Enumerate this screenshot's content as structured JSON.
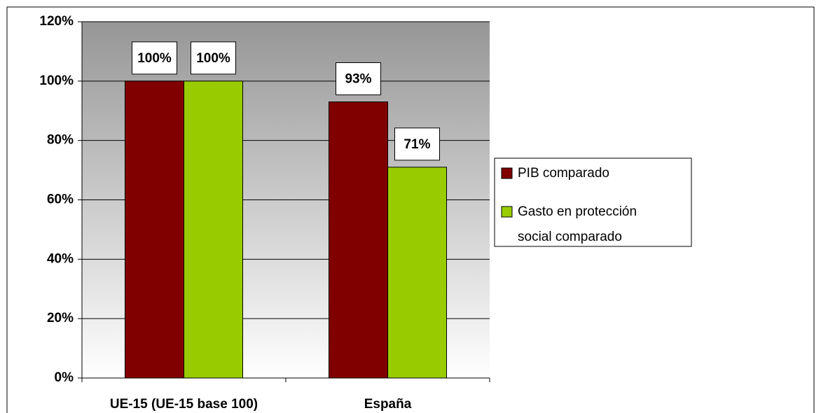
{
  "chart_data": {
    "type": "bar",
    "categories": [
      "UE-15 (UE-15 base 100)",
      "España"
    ],
    "series": [
      {
        "name": "PIB comparado",
        "color": "#800000",
        "values": [
          100,
          93
        ],
        "value_labels": [
          "100%",
          "93%"
        ]
      },
      {
        "name": "Gasto en protección social comparado",
        "color": "#99cc00",
        "values": [
          100,
          71
        ],
        "value_labels": [
          "100%",
          "71%"
        ]
      }
    ],
    "ylim": [
      0,
      120
    ],
    "yticks": [
      {
        "value": 0,
        "label": "0%"
      },
      {
        "value": 20,
        "label": "20%"
      },
      {
        "value": 40,
        "label": "40%"
      },
      {
        "value": 60,
        "label": "60%"
      },
      {
        "value": 80,
        "label": "80%"
      },
      {
        "value": 100,
        "label": "100%"
      },
      {
        "value": 120,
        "label": "120%"
      }
    ],
    "grid": true,
    "legend": "right"
  }
}
